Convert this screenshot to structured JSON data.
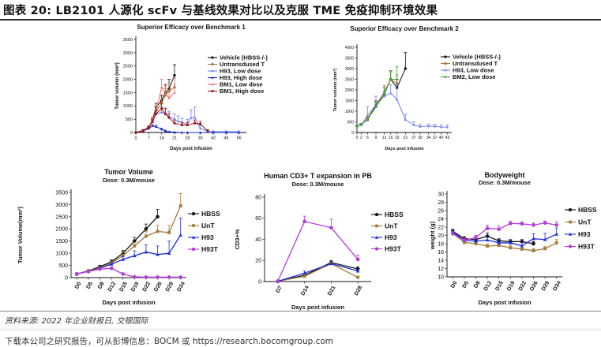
{
  "figure": {
    "title": "图表 20: LB2101 人源化 scFv 与基线效果对比以及克服 TME 免疫抑制环境效果",
    "source": "资料来源: 2022 年企业财报日, 交银国际",
    "disclaimer": "下载本公司之研究报告，可从彭博信息：BOCM 或 https://research.bocomgroup.com"
  },
  "colors": {
    "vehicle": "#111111",
    "untransduced": "#a57a3a",
    "h93_low": "#6f7ff0",
    "h93_high": "#1727c8",
    "bm1_low": "#f06a6a",
    "bm1_high": "#9b1414",
    "bm2_low": "#3f9e33",
    "hbss": "#111111",
    "unt": "#a57a3a",
    "h93": "#1e2fd4",
    "h93t": "#b43bd8"
  },
  "chart_data": [
    {
      "id": "bench1",
      "type": "line",
      "title": "Superior Efficacy over Benchmark 1",
      "subtitle": "",
      "xlabel": "Days post infusion",
      "ylabel": "Tumor volumn (mm³)",
      "xlim": [
        0,
        60
      ],
      "ylim": [
        0,
        3500
      ],
      "xticks": [
        0,
        7,
        14,
        21,
        28,
        35,
        42,
        49,
        56
      ],
      "yticks": [
        0,
        500,
        1000,
        1500,
        2000,
        2500,
        3000,
        3500
      ],
      "legend": "top-right",
      "series": [
        {
          "name": "Vehicle (HBSS-/-)",
          "color": "vehicle",
          "marker": "circle",
          "x": [
            0,
            4,
            7,
            9,
            11,
            14,
            16,
            18,
            21
          ],
          "y": [
            0,
            80,
            200,
            480,
            950,
            1200,
            1500,
            1650,
            2150
          ],
          "err": [
            0,
            20,
            40,
            80,
            150,
            200,
            300,
            350,
            400
          ]
        },
        {
          "name": "Untransdused T",
          "color": "untransduced",
          "marker": "circle",
          "x": [
            0,
            4,
            7,
            9,
            11,
            14,
            16,
            18,
            21
          ],
          "y": [
            0,
            70,
            180,
            420,
            820,
            1100,
            1400,
            1550,
            1700
          ],
          "err": [
            0,
            20,
            40,
            80,
            150,
            200,
            250,
            300,
            350
          ]
        },
        {
          "name": "H93, Low dose",
          "color": "h93_low",
          "marker": "triangle",
          "x": [
            0,
            4,
            7,
            9,
            11,
            14,
            16,
            18,
            21,
            23,
            25,
            28,
            30,
            32,
            35,
            39,
            42,
            49,
            56
          ],
          "y": [
            0,
            80,
            220,
            450,
            700,
            760,
            720,
            600,
            500,
            420,
            380,
            300,
            550,
            560,
            150,
            50,
            30,
            30,
            30
          ],
          "err": [
            0,
            20,
            40,
            80,
            150,
            200,
            200,
            200,
            200,
            200,
            150,
            200,
            300,
            400,
            150,
            50,
            30,
            30,
            30
          ]
        },
        {
          "name": "H93, High dose",
          "color": "h93_high",
          "marker": "triangle",
          "x": [
            0,
            4,
            7,
            9,
            11,
            14,
            16,
            18,
            21,
            25,
            28,
            35,
            42,
            49,
            56
          ],
          "y": [
            0,
            60,
            150,
            250,
            220,
            120,
            60,
            20,
            10,
            0,
            0,
            0,
            0,
            0,
            0
          ],
          "err": [
            0,
            20,
            30,
            50,
            50,
            40,
            30,
            20,
            10,
            0,
            0,
            0,
            0,
            0,
            0
          ]
        },
        {
          "name": "BM1, Low dose",
          "color": "bm1_low",
          "marker": "triangle",
          "x": [
            0,
            4,
            7,
            9,
            11,
            14,
            16,
            18,
            21
          ],
          "y": [
            0,
            80,
            200,
            450,
            800,
            1700,
            1450,
            1300,
            1500
          ],
          "err": [
            0,
            20,
            40,
            100,
            200,
            300,
            300,
            300,
            300
          ]
        },
        {
          "name": "BM1, High dose",
          "color": "bm1_high",
          "marker": "square",
          "x": [
            0,
            4,
            7,
            9,
            11,
            14,
            16,
            18,
            21,
            25,
            28,
            32,
            35,
            39
          ],
          "y": [
            0,
            70,
            180,
            400,
            700,
            900,
            700,
            560,
            350,
            280,
            280,
            350,
            320,
            50
          ],
          "err": [
            0,
            20,
            40,
            80,
            150,
            200,
            200,
            150,
            120,
            100,
            100,
            120,
            100,
            50
          ]
        }
      ]
    },
    {
      "id": "bench2",
      "type": "line",
      "title": "Superior Efficacy over Benchmark 2",
      "subtitle": "",
      "xlabel": "Days post infusion",
      "ylabel": "Tumor volumn (mm³)",
      "xlim": [
        0,
        45
      ],
      "ylim": [
        0,
        4000
      ],
      "xticks": [
        0,
        2,
        5,
        9,
        13,
        16,
        19,
        23,
        27,
        30,
        34,
        37,
        40,
        43
      ],
      "yticks": [
        0,
        500,
        1000,
        1500,
        2000,
        2500,
        3000,
        3500,
        4000
      ],
      "legend": "top-right",
      "series": [
        {
          "name": "Vehicle (HBSS-/-)",
          "color": "vehicle",
          "marker": "circle",
          "x": [
            0,
            2,
            5,
            9,
            13,
            16,
            19,
            23
          ],
          "y": [
            300,
            380,
            600,
            1250,
            1800,
            2500,
            2100,
            3000
          ],
          "err": [
            30,
            50,
            100,
            200,
            300,
            400,
            400,
            750
          ]
        },
        {
          "name": "Untransdused T",
          "color": "untransduced",
          "marker": "circle",
          "x": [
            0,
            2,
            5,
            9,
            13,
            16,
            19
          ],
          "y": [
            300,
            380,
            650,
            1300,
            1900,
            2500,
            2300
          ],
          "err": [
            30,
            50,
            100,
            200,
            300,
            350,
            400
          ]
        },
        {
          "name": "H93, Low dose",
          "color": "h93_low",
          "marker": "triangle",
          "x": [
            0,
            2,
            5,
            9,
            13,
            16,
            19,
            23,
            27,
            30,
            34,
            37,
            40,
            43
          ],
          "y": [
            300,
            350,
            800,
            1300,
            1700,
            1850,
            1550,
            600,
            350,
            280,
            300,
            290,
            260,
            250
          ],
          "err": [
            30,
            50,
            400,
            400,
            400,
            400,
            700,
            250,
            150,
            100,
            100,
            100,
            100,
            100
          ]
        },
        {
          "name": "BM2, Low dose",
          "color": "bm2_low",
          "marker": "triangle",
          "x": [
            0,
            2,
            5,
            9,
            13,
            16,
            19
          ],
          "y": [
            300,
            380,
            600,
            1200,
            1800,
            2500,
            2500
          ],
          "err": [
            30,
            50,
            100,
            200,
            300,
            400,
            600
          ]
        }
      ]
    },
    {
      "id": "tumor",
      "type": "line",
      "title": "Tumor Volume",
      "subtitle": "Dose: 0.3M/mouse",
      "xlabel": "Days post infusion",
      "ylabel": "Tumor Volume(mm³)",
      "categories": [
        "D0",
        "D5",
        "D8",
        "D12",
        "D15",
        "D19",
        "D22",
        "D26",
        "D29",
        "D34"
      ],
      "ylim": [
        0,
        3500
      ],
      "yticks": [
        0,
        500,
        1000,
        1500,
        2000,
        2500,
        3000,
        3500
      ],
      "legend": "right",
      "series": [
        {
          "name": "HBSS",
          "color": "hbss",
          "marker": "circle",
          "values": [
            150,
            280,
            450,
            650,
            1000,
            1500,
            2000,
            2500,
            null,
            null
          ],
          "err": [
            20,
            30,
            50,
            80,
            120,
            150,
            200,
            300,
            null,
            null
          ]
        },
        {
          "name": "UnT",
          "color": "unt",
          "marker": "square",
          "values": [
            150,
            280,
            400,
            600,
            900,
            1300,
            1700,
            1900,
            1850,
            2950
          ],
          "err": [
            20,
            30,
            50,
            80,
            120,
            150,
            200,
            250,
            300,
            500
          ]
        },
        {
          "name": "H93",
          "color": "h93",
          "marker": "triangle",
          "values": [
            150,
            260,
            380,
            550,
            750,
            900,
            1050,
            950,
            1000,
            1750
          ],
          "err": [
            20,
            30,
            50,
            80,
            120,
            200,
            300,
            350,
            500,
            700
          ]
        },
        {
          "name": "H93T",
          "color": "h93t",
          "marker": "circle",
          "values": [
            150,
            250,
            350,
            380,
            150,
            30,
            20,
            20,
            20,
            20
          ],
          "err": [
            20,
            30,
            50,
            60,
            40,
            10,
            5,
            5,
            5,
            5
          ]
        }
      ]
    },
    {
      "id": "cd3",
      "type": "line",
      "title": "Human CD3+ T expansion in PB",
      "subtitle": "Dose: 0.3M/mouse",
      "xlabel": "Days post infusion",
      "ylabel": "CD3+%",
      "categories": [
        "D7",
        "D14",
        "D21",
        "D28"
      ],
      "ylim": [
        0,
        80
      ],
      "yticks": [
        0,
        20,
        40,
        60,
        80
      ],
      "legend": "right",
      "series": [
        {
          "name": "HBSS",
          "color": "hbss",
          "marker": "circle",
          "values": [
            0.3,
            6,
            18,
            12
          ],
          "err": [
            0.2,
            1.5,
            2,
            2
          ]
        },
        {
          "name": "UnT",
          "color": "unt",
          "marker": "square",
          "values": [
            0.3,
            5,
            17,
            4
          ],
          "err": [
            0.2,
            1,
            2,
            1
          ]
        },
        {
          "name": "H93",
          "color": "h93",
          "marker": "triangle",
          "values": [
            0.3,
            8,
            17,
            10
          ],
          "err": [
            0.2,
            2,
            2,
            2
          ]
        },
        {
          "name": "H93T",
          "color": "h93t",
          "marker": "circle",
          "values": [
            0.5,
            57,
            51,
            21
          ],
          "err": [
            0.2,
            5,
            8,
            4
          ]
        }
      ]
    },
    {
      "id": "bodyweight",
      "type": "line",
      "title": "Bodyweight",
      "subtitle": "Dose: 0.3M/mouse",
      "xlabel": "Days post infusion",
      "ylabel": "weight (g)",
      "categories": [
        "D0",
        "D5",
        "D8",
        "D12",
        "D15",
        "D19",
        "D22",
        "D26",
        "D29",
        "D34"
      ],
      "ylim": [
        10,
        30
      ],
      "yticks": [
        10,
        12,
        14,
        16,
        18,
        20,
        22,
        24,
        26,
        28,
        30
      ],
      "legend": "right",
      "series": [
        {
          "name": "HBSS",
          "color": "hbss",
          "marker": "circle",
          "values": [
            21,
            19.2,
            19,
            19.8,
            18.7,
            18.5,
            18.5,
            18.0,
            null,
            null
          ],
          "err": [
            0.5,
            0.5,
            0.5,
            0.8,
            0.5,
            0.5,
            0.5,
            0.5,
            null,
            null
          ]
        },
        {
          "name": "UnT",
          "color": "unt",
          "marker": "square",
          "values": [
            20.5,
            18.3,
            18.0,
            17.4,
            17.6,
            17.0,
            16.7,
            16.3,
            16.8,
            18.2
          ],
          "err": [
            0.5,
            0.5,
            0.5,
            0.5,
            0.5,
            0.5,
            0.5,
            0.5,
            0.5,
            0.8
          ]
        },
        {
          "name": "H93",
          "color": "h93",
          "marker": "triangle",
          "values": [
            20.8,
            18.8,
            18.6,
            18.9,
            18.2,
            18.2,
            17.5,
            19.2,
            19.0,
            20.3
          ],
          "err": [
            0.5,
            0.5,
            0.5,
            0.8,
            0.8,
            0.8,
            0.8,
            1.2,
            1.5,
            1.5
          ]
        },
        {
          "name": "H93T",
          "color": "h93t",
          "marker": "circle",
          "values": [
            20.4,
            18.8,
            19.5,
            21.7,
            21.5,
            22.9,
            22.8,
            22.5,
            23.0,
            22.5
          ],
          "err": [
            0.5,
            0.5,
            0.5,
            0.8,
            0.8,
            0.5,
            0.5,
            0.5,
            0.5,
            0.8
          ]
        }
      ]
    }
  ]
}
